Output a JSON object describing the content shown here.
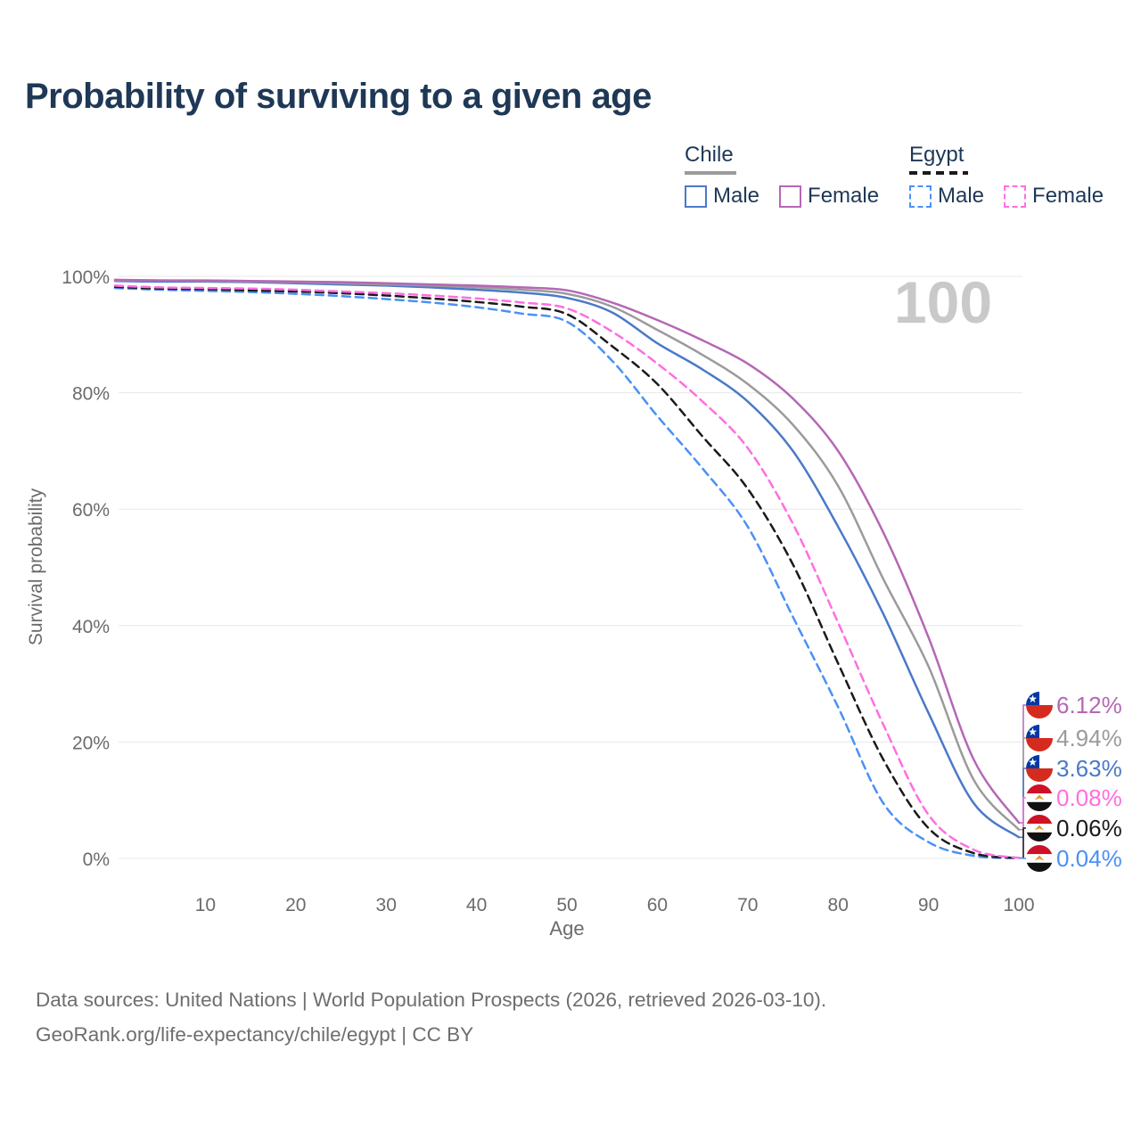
{
  "title": "Probability of surviving to a given age",
  "watermark": "100",
  "colors": {
    "title_text": "#1e3856",
    "axis_text": "#6b6b6b",
    "gridline": "#e8e8e8",
    "watermark": "#c9c9c9",
    "footer_text": "#6e6e6e",
    "chile_male": "#4a79c8",
    "chile_both": "#9b9b9b",
    "chile_female": "#b567b5",
    "egypt_male": "#4a90f7",
    "egypt_both": "#1a1a1a",
    "egypt_female": "#ff6ee0",
    "chile_flag_blue": "#0039a6",
    "chile_flag_red": "#d52b1e",
    "egypt_flag_red": "#ce1126",
    "egypt_flag_black": "#111111",
    "egypt_flag_gold": "#e0992f"
  },
  "legend": {
    "groups": [
      {
        "country": "Chile",
        "line_style": "solid",
        "underline_color": "#9b9b9b",
        "items": [
          {
            "label": "Male",
            "color": "#4a79c8",
            "dashed": false
          },
          {
            "label": "Female",
            "color": "#b567b5",
            "dashed": false
          }
        ]
      },
      {
        "country": "Egypt",
        "line_style": "dashed",
        "underline_color": "#1a1a1a",
        "items": [
          {
            "label": "Male",
            "color": "#4a90f7",
            "dashed": true
          },
          {
            "label": "Female",
            "color": "#ff6ee0",
            "dashed": true
          }
        ]
      }
    ]
  },
  "chart_data": {
    "type": "line",
    "title": "Probability of surviving to a given age",
    "xlabel": "Age",
    "ylabel": "Survival probability",
    "xlim": [
      0,
      100
    ],
    "ylim": [
      0,
      100
    ],
    "grid": true,
    "legend_position": "top-right",
    "x_ticks": [
      10,
      20,
      30,
      40,
      50,
      60,
      70,
      80,
      90,
      100
    ],
    "y_tick_labels": [
      "0%",
      "20%",
      "40%",
      "60%",
      "80%",
      "100%"
    ],
    "ages": [
      0,
      5,
      10,
      15,
      20,
      25,
      30,
      35,
      40,
      45,
      50,
      55,
      60,
      65,
      70,
      75,
      80,
      85,
      90,
      95,
      100
    ],
    "series": [
      {
        "name": "Egypt Male",
        "country": "Egypt",
        "sex": "Male",
        "color": "#4a90f7",
        "dashed": true,
        "end_label": "0.04%",
        "flag": "egypt",
        "values": [
          98.0,
          97.7,
          97.5,
          97.3,
          97.0,
          96.6,
          96.1,
          95.5,
          94.7,
          93.6,
          92.2,
          85.5,
          76.0,
          67.0,
          57.0,
          41.5,
          26.0,
          9.5,
          2.8,
          0.45,
          0.04
        ]
      },
      {
        "name": "Egypt",
        "country": "Egypt",
        "sex": "Both sexes",
        "color": "#1a1a1a",
        "dashed": true,
        "end_label": "0.06%",
        "flag": "egypt",
        "values": [
          98.2,
          97.9,
          97.8,
          97.6,
          97.4,
          97.1,
          96.7,
          96.2,
          95.6,
          94.8,
          93.5,
          88.0,
          81.5,
          72.5,
          63.5,
          50.5,
          33.5,
          17.0,
          5.2,
          0.9,
          0.06
        ]
      },
      {
        "name": "Egypt Female",
        "country": "Egypt",
        "sex": "Female",
        "color": "#ff6ee0",
        "dashed": true,
        "end_label": "0.08%",
        "flag": "egypt",
        "values": [
          98.4,
          98.1,
          98.0,
          97.9,
          97.7,
          97.4,
          97.1,
          96.7,
          96.2,
          95.5,
          94.5,
          90.5,
          85.0,
          78.5,
          70.5,
          57.5,
          40.5,
          23.0,
          7.5,
          1.5,
          0.08
        ]
      },
      {
        "name": "Chile Male",
        "country": "Chile",
        "sex": "Male",
        "color": "#4a79c8",
        "dashed": false,
        "end_label": "3.63%",
        "flag": "chile",
        "values": [
          99.2,
          99.1,
          99.1,
          99.0,
          98.8,
          98.6,
          98.4,
          98.1,
          97.7,
          97.2,
          96.3,
          93.8,
          88.5,
          84.0,
          78.5,
          70.0,
          57.0,
          42.0,
          25.0,
          9.5,
          3.63
        ]
      },
      {
        "name": "Chile",
        "country": "Chile",
        "sex": "Both sexes",
        "color": "#9b9b9b",
        "dashed": false,
        "end_label": "4.94%",
        "flag": "chile",
        "values": [
          99.3,
          99.3,
          99.2,
          99.1,
          99.0,
          98.8,
          98.6,
          98.4,
          98.1,
          97.7,
          97.0,
          94.8,
          90.8,
          86.5,
          81.5,
          74.5,
          64.0,
          48.0,
          33.0,
          13.5,
          4.94
        ]
      },
      {
        "name": "Chile Female",
        "country": "Chile",
        "sex": "Female",
        "color": "#b567b5",
        "dashed": false,
        "end_label": "6.12%",
        "flag": "chile",
        "values": [
          99.4,
          99.3,
          99.3,
          99.2,
          99.1,
          99.0,
          98.8,
          98.6,
          98.4,
          98.1,
          97.6,
          95.5,
          92.5,
          89.0,
          85.0,
          79.0,
          70.0,
          56.0,
          38.0,
          17.0,
          6.12
        ]
      }
    ]
  },
  "footer": {
    "line1": "Data sources: United Nations | World Population Prospects (2026, retrieved 2026-03-10).",
    "line2": "GeoRank.org/life-expectancy/chile/egypt | CC BY"
  }
}
